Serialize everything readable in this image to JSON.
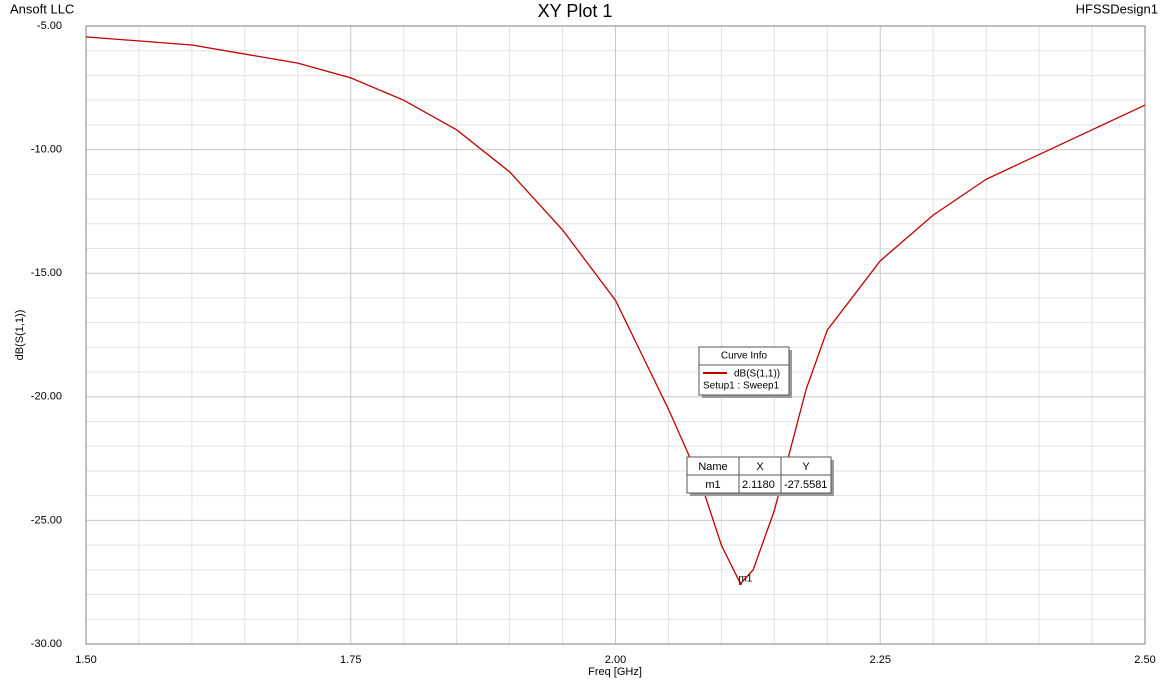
{
  "chart_data": {
    "type": "line",
    "title": "XY Plot 1",
    "corner_left": "Ansoft LLC",
    "corner_right": "HFSSDesign1",
    "xlabel": "Freq [GHz]",
    "ylabel": "dB(S(1,1))",
    "x": [
      1.5,
      1.6,
      1.7,
      1.75,
      1.8,
      1.85,
      1.9,
      1.95,
      2.0,
      2.05,
      2.08,
      2.1,
      2.118,
      2.13,
      2.15,
      2.18,
      2.2,
      2.25,
      2.3,
      2.35,
      2.4,
      2.45,
      2.5
    ],
    "series": [
      {
        "name": "dB(S(1,1))",
        "setup": "Setup1 : Sweep1",
        "color": "#c00000",
        "values": [
          -5.44,
          -5.77,
          -6.5,
          -7.1,
          -8.0,
          -9.2,
          -10.9,
          -13.25,
          -16.1,
          -20.5,
          -23.4,
          -26.0,
          -27.56,
          -27.0,
          -24.6,
          -19.7,
          -17.3,
          -14.5,
          -12.65,
          -11.2,
          -10.2,
          -9.2,
          -8.2
        ]
      }
    ],
    "xlim": [
      1.5,
      2.5
    ],
    "ylim": [
      -30,
      -5
    ],
    "xticks": [
      {
        "value": 1.5,
        "label": "1.50"
      },
      {
        "value": 1.75,
        "label": "1.75"
      },
      {
        "value": 2.0,
        "label": "2.00"
      },
      {
        "value": 2.25,
        "label": "2.25"
      },
      {
        "value": 2.5,
        "label": "2.50"
      }
    ],
    "yticks": [
      {
        "value": -30,
        "label": "-30.00"
      },
      {
        "value": -25,
        "label": "-25.00"
      },
      {
        "value": -20,
        "label": "-20.00"
      },
      {
        "value": -15,
        "label": "-15.00"
      },
      {
        "value": -10,
        "label": "-10.00"
      },
      {
        "value": -5,
        "label": "-5.00"
      }
    ],
    "grid": true,
    "legend_title": "Curve Info",
    "marker_table": {
      "columns": [
        "Name",
        "X",
        "Y"
      ]
    },
    "markers": [
      {
        "name": "m1",
        "x": 2.118,
        "y": -27.5581,
        "x_label": "2.1180",
        "y_label": "-27.5581"
      }
    ]
  }
}
